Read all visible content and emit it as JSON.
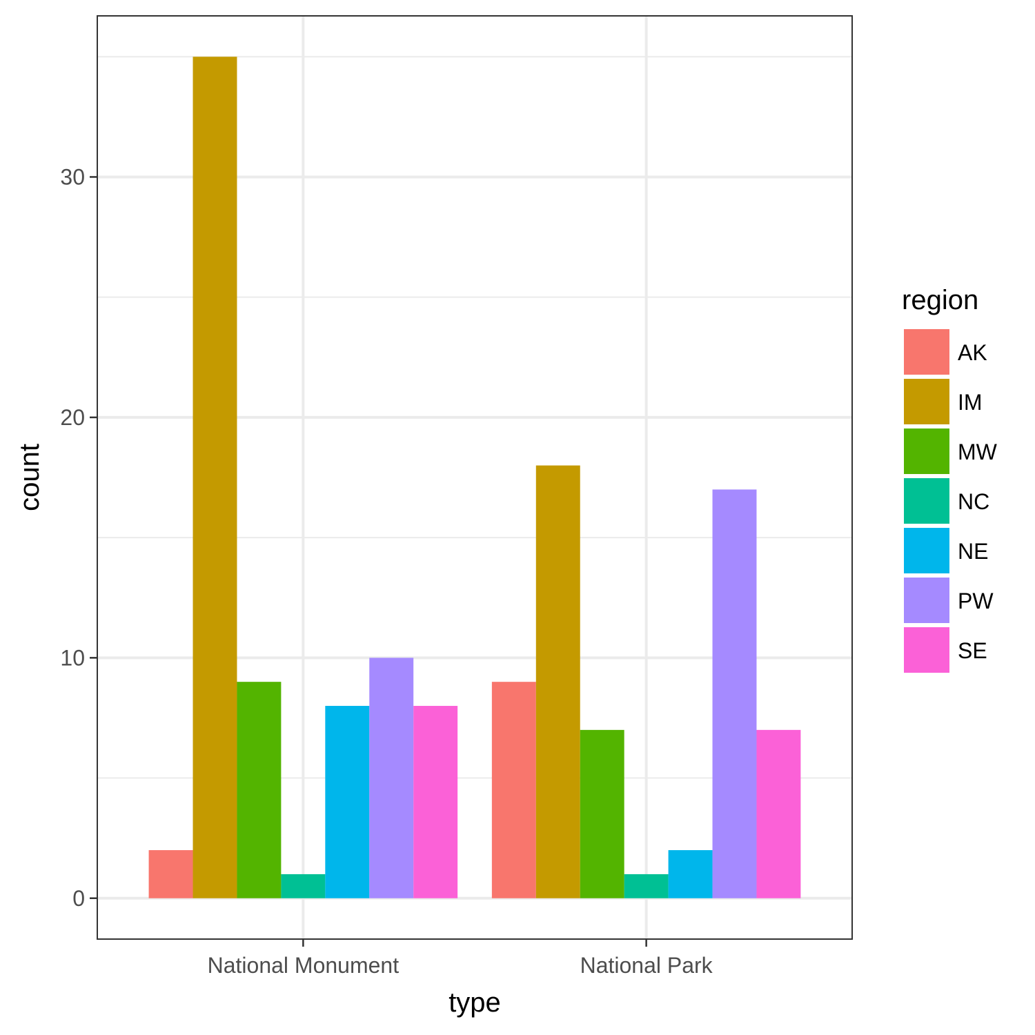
{
  "chart_data": {
    "type": "bar",
    "categories": [
      "National Monument",
      "National Park"
    ],
    "series": [
      {
        "name": "AK",
        "values": [
          2,
          9
        ]
      },
      {
        "name": "IM",
        "values": [
          35,
          18
        ]
      },
      {
        "name": "MW",
        "values": [
          9,
          7
        ]
      },
      {
        "name": "NC",
        "values": [
          1,
          1
        ]
      },
      {
        "name": "NE",
        "values": [
          8,
          2
        ]
      },
      {
        "name": "PW",
        "values": [
          10,
          17
        ]
      },
      {
        "name": "SE",
        "values": [
          8,
          7
        ]
      }
    ],
    "xlabel": "type",
    "ylabel": "count",
    "legend_title": "region",
    "yticks": [
      0,
      10,
      20,
      30
    ],
    "ylim": [
      -1.7,
      36.7
    ],
    "colors": [
      "#F8766D",
      "#C49A00",
      "#53B400",
      "#00C094",
      "#00B6EB",
      "#A58AFF",
      "#FB61D7"
    ],
    "grid": true,
    "legend_position": "right"
  }
}
